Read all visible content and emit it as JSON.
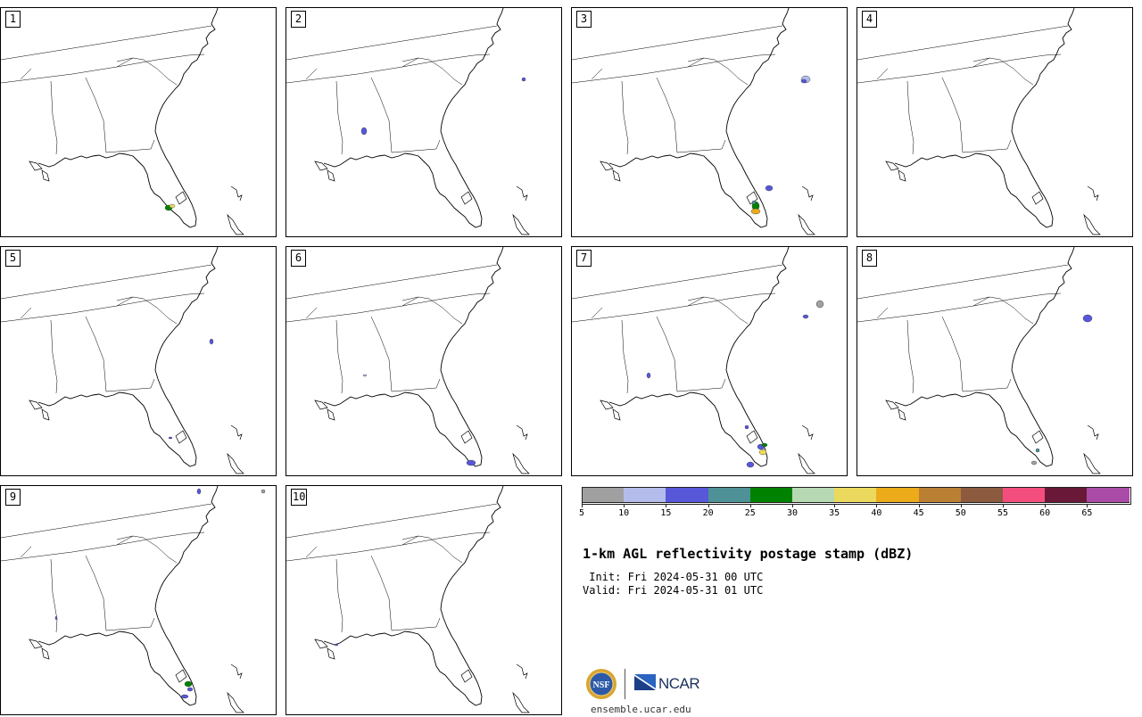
{
  "panels": [
    {
      "label": "1"
    },
    {
      "label": "2"
    },
    {
      "label": "3"
    },
    {
      "label": "4"
    },
    {
      "label": "5"
    },
    {
      "label": "6"
    },
    {
      "label": "7"
    },
    {
      "label": "8"
    },
    {
      "label": "9"
    },
    {
      "label": "10"
    }
  ],
  "colorbar": {
    "colors": [
      "#a0a0a0",
      "#b4bceb",
      "#5757d9",
      "#4e9297",
      "#008200",
      "#b6d8b2",
      "#ebd95d",
      "#ecab1a",
      "#bb7f33",
      "#8b5a3f",
      "#f44e7e",
      "#6a1838",
      "#ab4ba8"
    ],
    "ticks": [
      "5",
      "10",
      "15",
      "20",
      "25",
      "30",
      "35",
      "40",
      "45",
      "50",
      "55",
      "60",
      "65"
    ]
  },
  "title": "1-km AGL reflectivity postage stamp (dBZ)",
  "init_line": " Init: Fri 2024-05-31 00 UTC",
  "valid_line": "Valid: Fri 2024-05-31 01 UTC",
  "footer": {
    "nsf_logo": "NSF",
    "ncar_logo": "NCAR",
    "url": "ensemble.ucar.edu"
  },
  "icons": {
    "nsf": "nsf-logo",
    "ncar": "ncar-logo"
  }
}
